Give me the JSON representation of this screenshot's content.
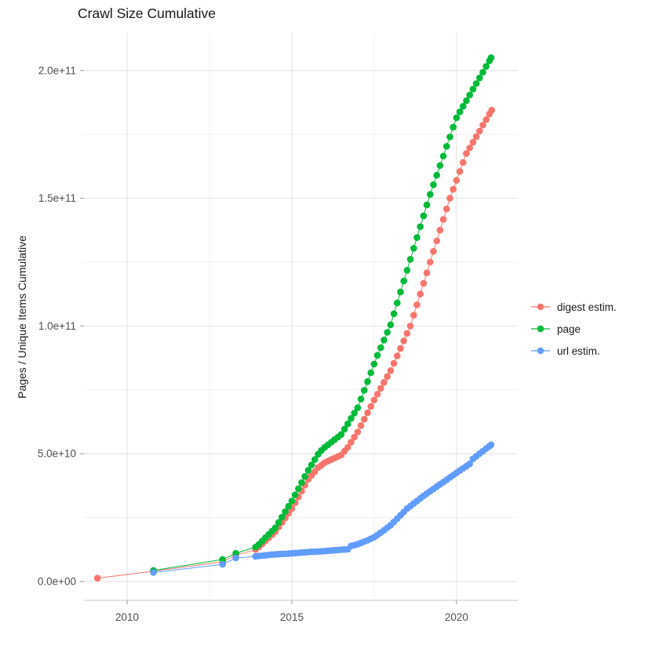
{
  "title": "Crawl Size Cumulative",
  "chart_data": {
    "type": "line",
    "title": "Crawl Size Cumulative",
    "xlabel": "",
    "ylabel": "Pages / Unique Items Cumulative",
    "grid": true,
    "legend_position": "right",
    "xlim": [
      2008.69,
      2021.86
    ],
    "ylim": [
      -7400000000.0,
      214700000000.0
    ],
    "x_ticks": {
      "values": [
        2010,
        2015,
        2020
      ],
      "labels": [
        "2010",
        "2015",
        "2020"
      ]
    },
    "x_minor_ticks": [
      2012.5,
      2017.5
    ],
    "y_ticks": {
      "values": [
        0,
        50000000000.0,
        100000000000.0,
        150000000000.0,
        200000000000.0
      ],
      "labels": [
        "0.0e+00",
        "5.0e+10",
        "1.0e+11",
        "1.5e+11",
        "2.0e+11"
      ]
    },
    "y_minor_ticks": [
      25000000000.0,
      75000000000.0,
      125000000000.0,
      175000000000.0
    ],
    "series": [
      {
        "name": "digest estim.",
        "color": "#F8766D",
        "points": [
          [
            2009.1,
            1300000000.0
          ],
          [
            2010.8,
            4000000000.0
          ],
          [
            2012.9,
            7700000000.0
          ],
          [
            2013.3,
            10200000000.0
          ],
          [
            2013.9,
            12500000000.0
          ],
          [
            2014.0,
            13500000000.0
          ],
          [
            2014.1,
            14700000000.0
          ],
          [
            2014.2,
            15900000000.0
          ],
          [
            2014.3,
            17100000000.0
          ],
          [
            2014.4,
            18300000000.0
          ],
          [
            2014.5,
            19500000000.0
          ],
          [
            2014.6,
            21300000000.0
          ],
          [
            2014.7,
            23100000000.0
          ],
          [
            2014.8,
            24900000000.0
          ],
          [
            2014.9,
            26700000000.0
          ],
          [
            2015.0,
            28500000000.0
          ],
          [
            2015.1,
            30800000000.0
          ],
          [
            2015.2,
            33100000000.0
          ],
          [
            2015.3,
            35400000000.0
          ],
          [
            2015.4,
            37700000000.0
          ],
          [
            2015.5,
            40000000000.0
          ],
          [
            2015.6,
            41500000000.0
          ],
          [
            2015.7,
            43000000000.0
          ],
          [
            2015.8,
            44600000000.0
          ],
          [
            2015.9,
            45500000000.0
          ],
          [
            2016.0,
            46500000000.0
          ],
          [
            2016.1,
            47100000000.0
          ],
          [
            2016.2,
            47700000000.0
          ],
          [
            2016.3,
            48300000000.0
          ],
          [
            2016.4,
            48900000000.0
          ],
          [
            2016.5,
            49500000000.0
          ],
          [
            2016.6,
            51000000000.0
          ],
          [
            2016.7,
            52500000000.0
          ],
          [
            2016.8,
            54500000000.0
          ],
          [
            2016.9,
            56500000000.0
          ],
          [
            2017.0,
            58500000000.0
          ],
          [
            2017.1,
            61000000000.0
          ],
          [
            2017.2,
            63500000000.0
          ],
          [
            2017.3,
            66000000000.0
          ],
          [
            2017.4,
            68500000000.0
          ],
          [
            2017.5,
            71000000000.0
          ],
          [
            2017.6,
            73300000000.0
          ],
          [
            2017.7,
            75600000000.0
          ],
          [
            2017.8,
            77900000000.0
          ],
          [
            2017.9,
            80200000000.0
          ],
          [
            2018.0,
            82500000000.0
          ],
          [
            2018.1,
            85400000000.0
          ],
          [
            2018.2,
            88300000000.0
          ],
          [
            2018.3,
            91200000000.0
          ],
          [
            2018.4,
            94200000000.0
          ],
          [
            2018.5,
            97100000000.0
          ],
          [
            2018.6,
            100000000000.0
          ],
          [
            2018.7,
            104200000000.0
          ],
          [
            2018.8,
            108300000000.0
          ],
          [
            2018.9,
            112500000000.0
          ],
          [
            2019.0,
            116700000000.0
          ],
          [
            2019.1,
            120800000000.0
          ],
          [
            2019.2,
            125000000000.0
          ],
          [
            2019.3,
            129200000000.0
          ],
          [
            2019.4,
            133300000000.0
          ],
          [
            2019.5,
            137500000000.0
          ],
          [
            2019.6,
            141700000000.0
          ],
          [
            2019.7,
            145800000000.0
          ],
          [
            2019.8,
            150000000000.0
          ],
          [
            2019.9,
            153500000000.0
          ],
          [
            2020.0,
            157000000000.0
          ],
          [
            2020.1,
            160500000000.0
          ],
          [
            2020.2,
            164000000000.0
          ],
          [
            2020.3,
            167500000000.0
          ],
          [
            2020.4,
            169700000000.0
          ],
          [
            2020.5,
            171900000000.0
          ],
          [
            2020.6,
            174100000000.0
          ],
          [
            2020.7,
            176300000000.0
          ],
          [
            2020.8,
            178600000000.0
          ],
          [
            2020.9,
            180800000000.0
          ],
          [
            2021.0,
            183000000000.0
          ],
          [
            2021.07,
            184500000000.0
          ]
        ]
      },
      {
        "name": "page",
        "color": "#00BA38",
        "points": [
          [
            2010.8,
            4300000000.0
          ],
          [
            2012.9,
            8600000000.0
          ],
          [
            2013.3,
            11000000000.0
          ],
          [
            2013.9,
            13500000000.0
          ],
          [
            2014.0,
            14500000000.0
          ],
          [
            2014.1,
            15800000000.0
          ],
          [
            2014.2,
            17100000000.0
          ],
          [
            2014.3,
            18400000000.0
          ],
          [
            2014.4,
            19700000000.0
          ],
          [
            2014.5,
            21000000000.0
          ],
          [
            2014.6,
            23100000000.0
          ],
          [
            2014.7,
            25200000000.0
          ],
          [
            2014.8,
            27300000000.0
          ],
          [
            2014.9,
            29400000000.0
          ],
          [
            2015.0,
            31500000000.0
          ],
          [
            2015.1,
            33900000000.0
          ],
          [
            2015.2,
            36300000000.0
          ],
          [
            2015.3,
            38700000000.0
          ],
          [
            2015.4,
            41100000000.0
          ],
          [
            2015.5,
            43500000000.0
          ],
          [
            2015.6,
            45600000000.0
          ],
          [
            2015.7,
            47700000000.0
          ],
          [
            2015.8,
            49800000000.0
          ],
          [
            2015.9,
            51300000000.0
          ],
          [
            2016.0,
            52500000000.0
          ],
          [
            2016.1,
            53500000000.0
          ],
          [
            2016.2,
            54500000000.0
          ],
          [
            2016.3,
            55500000000.0
          ],
          [
            2016.4,
            56500000000.0
          ],
          [
            2016.5,
            57500000000.0
          ],
          [
            2016.6,
            59600000000.0
          ],
          [
            2016.7,
            61700000000.0
          ],
          [
            2016.8,
            63800000000.0
          ],
          [
            2016.9,
            65900000000.0
          ],
          [
            2017.0,
            68000000000.0
          ],
          [
            2017.1,
            71400000000.0
          ],
          [
            2017.2,
            74800000000.0
          ],
          [
            2017.3,
            78200000000.0
          ],
          [
            2017.4,
            81700000000.0
          ],
          [
            2017.5,
            85100000000.0
          ],
          [
            2017.6,
            88500000000.0
          ],
          [
            2017.7,
            91500000000.0
          ],
          [
            2017.8,
            94500000000.0
          ],
          [
            2017.9,
            97500000000.0
          ],
          [
            2018.0,
            100500000000.0
          ],
          [
            2018.1,
            104800000000.0
          ],
          [
            2018.2,
            109000000000.0
          ],
          [
            2018.3,
            113300000000.0
          ],
          [
            2018.4,
            117600000000.0
          ],
          [
            2018.5,
            121800000000.0
          ],
          [
            2018.6,
            126100000000.0
          ],
          [
            2018.7,
            130400000000.0
          ],
          [
            2018.8,
            134600000000.0
          ],
          [
            2018.9,
            138900000000.0
          ],
          [
            2019.0,
            143100000000.0
          ],
          [
            2019.1,
            147400000000.0
          ],
          [
            2019.2,
            151500000000.0
          ],
          [
            2019.3,
            155300000000.0
          ],
          [
            2019.4,
            159000000000.0
          ],
          [
            2019.5,
            162800000000.0
          ],
          [
            2019.6,
            166500000000.0
          ],
          [
            2019.7,
            170300000000.0
          ],
          [
            2019.8,
            174000000000.0
          ],
          [
            2019.9,
            177800000000.0
          ],
          [
            2020.0,
            181500000000.0
          ],
          [
            2020.1,
            183800000000.0
          ],
          [
            2020.2,
            186000000000.0
          ],
          [
            2020.3,
            188200000000.0
          ],
          [
            2020.4,
            190400000000.0
          ],
          [
            2020.5,
            192700000000.0
          ],
          [
            2020.6,
            194900000000.0
          ],
          [
            2020.7,
            197100000000.0
          ],
          [
            2020.8,
            199300000000.0
          ],
          [
            2020.9,
            201600000000.0
          ],
          [
            2021.0,
            203800000000.0
          ],
          [
            2021.05,
            205000000000.0
          ]
        ]
      },
      {
        "name": "url estim.",
        "color": "#619CFF",
        "points": [
          [
            2010.8,
            3500000000.0
          ],
          [
            2012.9,
            6700000000.0
          ],
          [
            2013.3,
            9200000000.0
          ],
          [
            2013.9,
            9800000000.0
          ],
          [
            2014.0,
            10000000000.0
          ],
          [
            2014.1,
            10100000000.0
          ],
          [
            2014.2,
            10200000000.0
          ],
          [
            2014.3,
            10400000000.0
          ],
          [
            2014.4,
            10500000000.0
          ],
          [
            2014.5,
            10600000000.0
          ],
          [
            2014.6,
            10700000000.0
          ],
          [
            2014.7,
            10800000000.0
          ],
          [
            2014.8,
            10800000000.0
          ],
          [
            2014.9,
            10900000000.0
          ],
          [
            2015.0,
            11000000000.0
          ],
          [
            2015.1,
            11100000000.0
          ],
          [
            2015.2,
            11200000000.0
          ],
          [
            2015.3,
            11300000000.0
          ],
          [
            2015.4,
            11400000000.0
          ],
          [
            2015.5,
            11500000000.0
          ],
          [
            2015.6,
            11600000000.0
          ],
          [
            2015.7,
            11600000000.0
          ],
          [
            2015.8,
            11700000000.0
          ],
          [
            2015.9,
            11800000000.0
          ],
          [
            2016.0,
            11900000000.0
          ],
          [
            2016.1,
            12000000000.0
          ],
          [
            2016.2,
            12100000000.0
          ],
          [
            2016.3,
            12200000000.0
          ],
          [
            2016.4,
            12300000000.0
          ],
          [
            2016.5,
            12400000000.0
          ],
          [
            2016.6,
            12500000000.0
          ],
          [
            2016.7,
            12600000000.0
          ],
          [
            2016.8,
            13900000000.0
          ],
          [
            2016.9,
            14200000000.0
          ],
          [
            2017.0,
            14600000000.0
          ],
          [
            2017.1,
            15100000000.0
          ],
          [
            2017.2,
            15600000000.0
          ],
          [
            2017.3,
            16100000000.0
          ],
          [
            2017.4,
            16700000000.0
          ],
          [
            2017.5,
            17300000000.0
          ],
          [
            2017.6,
            18200000000.0
          ],
          [
            2017.7,
            19100000000.0
          ],
          [
            2017.8,
            20000000000.0
          ],
          [
            2017.9,
            21000000000.0
          ],
          [
            2018.0,
            22000000000.0
          ],
          [
            2018.1,
            23300000000.0
          ],
          [
            2018.2,
            24600000000.0
          ],
          [
            2018.3,
            25900000000.0
          ],
          [
            2018.4,
            27200000000.0
          ],
          [
            2018.5,
            28500000000.0
          ],
          [
            2018.6,
            29500000000.0
          ],
          [
            2018.7,
            30500000000.0
          ],
          [
            2018.8,
            31500000000.0
          ],
          [
            2018.9,
            32500000000.0
          ],
          [
            2019.0,
            33500000000.0
          ],
          [
            2019.1,
            34400000000.0
          ],
          [
            2019.2,
            35300000000.0
          ],
          [
            2019.3,
            36200000000.0
          ],
          [
            2019.4,
            37100000000.0
          ],
          [
            2019.5,
            38000000000.0
          ],
          [
            2019.6,
            38900000000.0
          ],
          [
            2019.7,
            39800000000.0
          ],
          [
            2019.8,
            40700000000.0
          ],
          [
            2019.9,
            41600000000.0
          ],
          [
            2020.0,
            42500000000.0
          ],
          [
            2020.1,
            43400000000.0
          ],
          [
            2020.2,
            44300000000.0
          ],
          [
            2020.3,
            45100000000.0
          ],
          [
            2020.4,
            46000000000.0
          ],
          [
            2020.5,
            48000000000.0
          ],
          [
            2020.6,
            49000000000.0
          ],
          [
            2020.7,
            50000000000.0
          ],
          [
            2020.8,
            51000000000.0
          ],
          [
            2020.9,
            52000000000.0
          ],
          [
            2021.0,
            53000000000.0
          ],
          [
            2021.05,
            53500000000.0
          ]
        ]
      }
    ],
    "colors": {
      "major_grid": "#e3e3e3",
      "minor_grid": "#f0f0f0",
      "tick_label": "#4d4d4d",
      "axis_tick": "#999999",
      "axis_line": "#c8c8c8",
      "background": "#ffffff"
    }
  }
}
